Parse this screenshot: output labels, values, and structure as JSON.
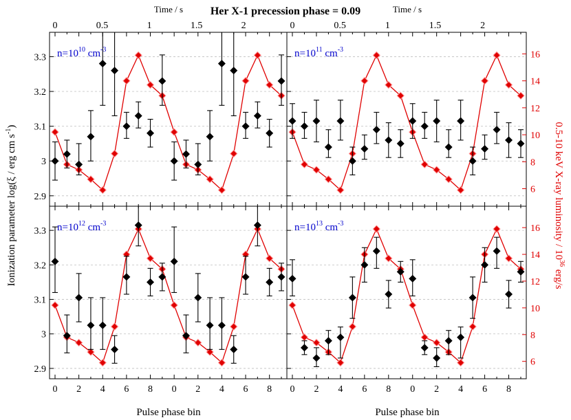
{
  "figure": {
    "title": "Her X-1 precession phase = 0.09",
    "top_axis_label": "Time / s",
    "x_axis_label": "Pulse phase bin",
    "left_axis_label": "Ionization parameter log(ξ / erg cm s",
    "left_axis_label_sup": "-1",
    "left_axis_label_end": ")",
    "right_axis_label": "0.5-10 keV X-ray luminosity / 10",
    "right_axis_label_sup": "36",
    "right_axis_label_end": " erg/s",
    "colors": {
      "ionization": "#000000",
      "luminosity": "#e00000",
      "density_label": "#0000cc",
      "grid": "#bfbfbf"
    }
  },
  "chart_data": {
    "type": "scatter",
    "x_bins": [
      0,
      1,
      2,
      3,
      4,
      5,
      6,
      7,
      8,
      9,
      0,
      1,
      2,
      3,
      4,
      5,
      6,
      7,
      8,
      9
    ],
    "x_tick_labels": [
      "0",
      "2",
      "4",
      "6",
      "8",
      "0",
      "2",
      "4",
      "6",
      "8"
    ],
    "top_x_ticks": [
      "0",
      "0.5",
      "1",
      "1.5",
      "2"
    ],
    "top_x_range_s": [
      0,
      2.4
    ],
    "y_left_range": [
      2.87,
      3.37
    ],
    "y_left_ticks": [
      "2.9",
      "3",
      "3.1",
      "3.2",
      "3.3"
    ],
    "y_right_range": [
      4.7,
      17.6
    ],
    "y_right_ticks": [
      "6",
      "8",
      "10",
      "12",
      "14",
      "16"
    ],
    "grid": "horizontal dashed",
    "luminosity": [
      10.2,
      7.8,
      7.4,
      6.7,
      5.9,
      8.6,
      14.0,
      15.9,
      13.7,
      12.9,
      10.2,
      7.8,
      7.4,
      6.7,
      5.9,
      8.6,
      14.0,
      15.9,
      13.7,
      12.9
    ],
    "panels": [
      {
        "density_base": "n=10",
        "density_exp": "10",
        "density_unit": "cm",
        "density_unit_exp": "-3",
        "ionization": [
          3.0,
          3.02,
          2.99,
          3.07,
          3.28,
          3.26,
          3.1,
          3.13,
          3.08,
          3.23,
          3.0,
          3.02,
          2.99,
          3.07,
          3.28,
          3.26,
          3.1,
          3.13,
          3.08,
          3.23
        ],
        "err_lo": [
          0.055,
          0.04,
          0.03,
          0.07,
          0.12,
          0.13,
          0.035,
          0.035,
          0.04,
          0.07,
          0.055,
          0.04,
          0.03,
          0.07,
          0.12,
          0.13,
          0.035,
          0.035,
          0.04,
          0.07
        ],
        "err_hi": [
          0.055,
          0.04,
          0.06,
          0.075,
          0.14,
          0.14,
          0.04,
          0.04,
          0.04,
          0.075,
          0.055,
          0.04,
          0.06,
          0.075,
          0.14,
          0.14,
          0.04,
          0.04,
          0.04,
          0.075
        ]
      },
      {
        "density_base": "n=10",
        "density_exp": "11",
        "density_unit": "cm",
        "density_unit_exp": "-3",
        "ionization": [
          3.115,
          3.1,
          3.115,
          3.04,
          3.115,
          3.0,
          3.035,
          3.09,
          3.06,
          3.05,
          3.115,
          3.1,
          3.115,
          3.04,
          3.115,
          3.0,
          3.035,
          3.09,
          3.06,
          3.05
        ],
        "err_lo": [
          0.05,
          0.035,
          0.06,
          0.03,
          0.055,
          0.04,
          0.03,
          0.04,
          0.05,
          0.04,
          0.05,
          0.035,
          0.06,
          0.03,
          0.055,
          0.04,
          0.03,
          0.04,
          0.05,
          0.04
        ],
        "err_hi": [
          0.05,
          0.04,
          0.06,
          0.05,
          0.06,
          0.04,
          0.04,
          0.05,
          0.05,
          0.04,
          0.05,
          0.04,
          0.06,
          0.05,
          0.06,
          0.04,
          0.04,
          0.05,
          0.05,
          0.04
        ]
      },
      {
        "density_base": "n=10",
        "density_exp": "12",
        "density_unit": "cm",
        "density_unit_exp": "-3",
        "ionization": [
          3.21,
          2.995,
          3.105,
          3.025,
          3.025,
          2.955,
          3.165,
          3.315,
          3.15,
          3.165,
          3.21,
          2.995,
          3.105,
          3.025,
          3.025,
          2.955,
          3.165,
          3.315,
          3.15,
          3.165
        ],
        "err_lo": [
          0.09,
          0.05,
          0.07,
          0.07,
          0.07,
          0.04,
          0.05,
          0.06,
          0.04,
          0.04,
          0.09,
          0.05,
          0.07,
          0.07,
          0.07,
          0.04,
          0.05,
          0.06,
          0.04,
          0.04
        ],
        "err_hi": [
          0.1,
          0.06,
          0.07,
          0.08,
          0.08,
          0.04,
          0.06,
          0.06,
          0.04,
          0.04,
          0.1,
          0.06,
          0.07,
          0.08,
          0.08,
          0.04,
          0.06,
          0.06,
          0.04,
          0.04
        ]
      },
      {
        "density_base": "n=10",
        "density_exp": "13",
        "density_unit": "cm",
        "density_unit_exp": "-3",
        "ionization": [
          3.16,
          2.96,
          2.93,
          2.98,
          2.99,
          3.105,
          3.2,
          3.24,
          3.115,
          3.18,
          3.16,
          2.96,
          2.93,
          2.98,
          2.99,
          3.105,
          3.2,
          3.24,
          3.115,
          3.18
        ],
        "err_lo": [
          0.05,
          0.02,
          0.025,
          0.04,
          0.06,
          0.06,
          0.05,
          0.05,
          0.04,
          0.03,
          0.05,
          0.02,
          0.025,
          0.04,
          0.06,
          0.06,
          0.05,
          0.05,
          0.04,
          0.03
        ],
        "err_hi": [
          0.055,
          0.02,
          0.03,
          0.03,
          0.03,
          0.06,
          0.05,
          0.04,
          0.04,
          0.03,
          0.055,
          0.02,
          0.03,
          0.03,
          0.03,
          0.06,
          0.05,
          0.04,
          0.04,
          0.03
        ]
      }
    ]
  }
}
